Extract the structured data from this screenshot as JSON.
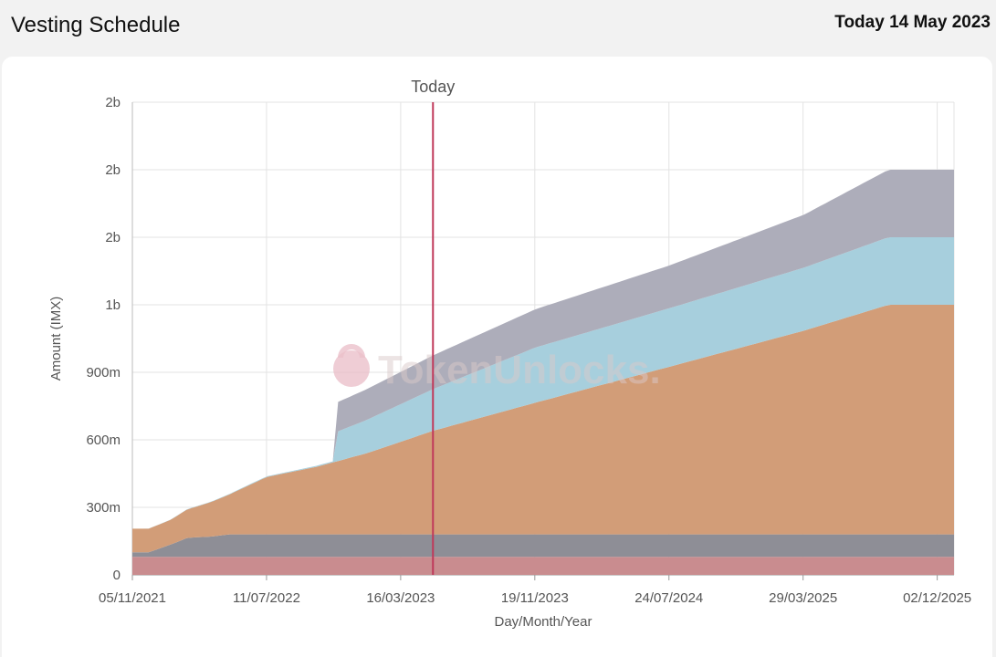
{
  "header": {
    "title": "Vesting Schedule",
    "today_text": "Today 14 May 2023"
  },
  "watermark": {
    "text": "TokenUnlocks.",
    "icon": "lock-logo-icon"
  },
  "chart_data": {
    "type": "area",
    "stacked": true,
    "title": "",
    "xlabel": "Day/Month/Year",
    "ylabel": "Amount (IMX)",
    "x_ticks": [
      "05/11/2021",
      "11/07/2022",
      "16/03/2023",
      "19/11/2023",
      "24/07/2024",
      "29/03/2025",
      "02/12/2025"
    ],
    "y_ticks": [
      "0",
      "300m",
      "600m",
      "900m",
      "1b",
      "2b",
      "2b",
      "2b"
    ],
    "ylim": [
      0,
      2100
    ],
    "y_unit": "millions of IMX",
    "xlim": [
      "2021-11-05",
      "2025-12-31"
    ],
    "marker": {
      "label": "Today",
      "date": "2023-05-14",
      "color": "#c0395a"
    },
    "grid": true,
    "legend": "none",
    "series": [
      {
        "color": "#c98c8f",
        "points": [
          [
            "2021-11-05",
            80
          ],
          [
            "2025-12-31",
            80
          ]
        ]
      },
      {
        "color": "#8e8e96",
        "points": [
          [
            "2021-11-05",
            20
          ],
          [
            "2021-12-05",
            20
          ],
          [
            "2022-01-15",
            55
          ],
          [
            "2022-02-15",
            85
          ],
          [
            "2022-04-01",
            90
          ],
          [
            "2022-05-01",
            100
          ],
          [
            "2022-07-01",
            100
          ],
          [
            "2025-12-31",
            100
          ]
        ]
      },
      {
        "color": "#d29d78",
        "points": [
          [
            "2021-11-05",
            105
          ],
          [
            "2021-12-05",
            105
          ],
          [
            "2022-01-15",
            110
          ],
          [
            "2022-03-01",
            135
          ],
          [
            "2022-05-01",
            175
          ],
          [
            "2022-07-11",
            255
          ],
          [
            "2022-10-11",
            300
          ],
          [
            "2023-01-11",
            360
          ],
          [
            "2023-05-14",
            460
          ],
          [
            "2023-11-19",
            585
          ],
          [
            "2024-07-24",
            745
          ],
          [
            "2025-03-29",
            905
          ],
          [
            "2025-09-01",
            1020
          ],
          [
            "2025-12-31",
            1020
          ]
        ]
      },
      {
        "color": "#a7cfdd",
        "points": [
          [
            "2021-11-05",
            0
          ],
          [
            "2022-07-11",
            3
          ],
          [
            "2022-11-13",
            5
          ],
          [
            "2022-11-14",
            130
          ],
          [
            "2023-05-14",
            185
          ],
          [
            "2023-11-19",
            245
          ],
          [
            "2024-07-24",
            260
          ],
          [
            "2025-03-29",
            280
          ],
          [
            "2025-09-01",
            300
          ],
          [
            "2025-12-31",
            300
          ]
        ]
      },
      {
        "color": "#adadba",
        "points": [
          [
            "2021-11-05",
            0
          ],
          [
            "2022-11-13",
            0
          ],
          [
            "2022-11-14",
            130
          ],
          [
            "2023-05-14",
            150
          ],
          [
            "2023-11-19",
            170
          ],
          [
            "2024-07-24",
            190
          ],
          [
            "2025-03-29",
            235
          ],
          [
            "2025-09-01",
            300
          ],
          [
            "2025-12-31",
            300
          ]
        ]
      }
    ]
  }
}
